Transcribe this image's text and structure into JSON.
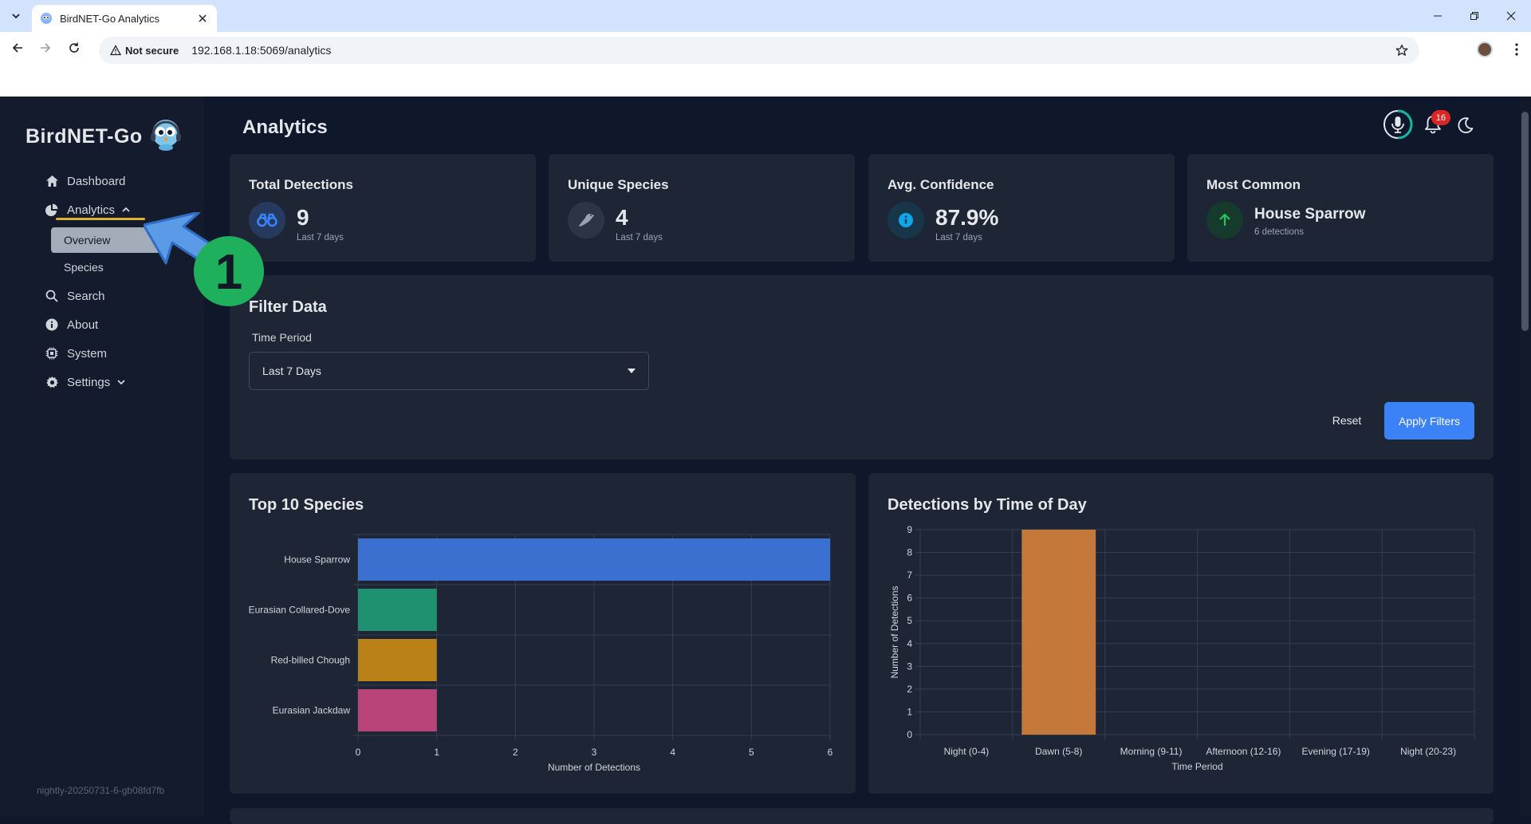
{
  "browser": {
    "tab_title": "BirdNET-Go Analytics",
    "security_label": "Not secure",
    "url": "192.168.1.18:5069/analytics"
  },
  "sidebar": {
    "brand": "BirdNET-Go",
    "items": [
      {
        "label": "Dashboard",
        "icon": "home-icon"
      },
      {
        "label": "Analytics",
        "icon": "pie-chart-icon"
      },
      {
        "label": "Search",
        "icon": "search-icon"
      },
      {
        "label": "About",
        "icon": "info-icon"
      },
      {
        "label": "System",
        "icon": "cpu-icon"
      },
      {
        "label": "Settings",
        "icon": "gear-icon"
      }
    ],
    "sub_items": [
      "Overview",
      "Species"
    ],
    "version": "nightly-20250731-6-gb08fd7fb"
  },
  "header": {
    "title": "Analytics",
    "notification_count": "16"
  },
  "stats": [
    {
      "label": "Total Detections",
      "value": "9",
      "sub": "Last 7 days",
      "icon": "binoculars-icon",
      "color": "#3b82f6"
    },
    {
      "label": "Unique Species",
      "value": "4",
      "sub": "Last 7 days",
      "icon": "bird-icon",
      "color": "#9ca3af"
    },
    {
      "label": "Avg. Confidence",
      "value": "87.9%",
      "sub": "Last 7 days",
      "icon": "info-icon",
      "color": "#0ea5e9"
    },
    {
      "label": "Most Common",
      "value": "House Sparrow",
      "sub": "6 detections",
      "icon": "arrow-up-icon",
      "color": "#22c55e"
    }
  ],
  "filter": {
    "title": "Filter Data",
    "time_label": "Time Period",
    "time_value": "Last 7 Days",
    "reset": "Reset",
    "apply": "Apply Filters"
  },
  "annotation": {
    "number": "1"
  },
  "chart_data": [
    {
      "type": "bar",
      "orientation": "horizontal",
      "title": "Top 10 Species",
      "xlabel": "Number of Detections",
      "ylabel": "",
      "categories": [
        "House Sparrow",
        "Eurasian Collared-Dove",
        "Red-billed Chough",
        "Eurasian Jackdaw"
      ],
      "values": [
        6,
        1,
        1,
        1
      ],
      "colors": [
        "#3b6fd0",
        "#1f9170",
        "#bb8119",
        "#b84479"
      ],
      "xlim": [
        0,
        6
      ],
      "ticks": [
        "0",
        "1",
        "2",
        "3",
        "4",
        "5",
        "6"
      ],
      "grid": true
    },
    {
      "type": "bar",
      "title": "Detections by Time of Day",
      "xlabel": "Time Period",
      "ylabel": "Number of Detections",
      "categories": [
        "Night (0-4)",
        "Dawn (5-8)",
        "Morning (9-11)",
        "Afternoon (12-16)",
        "Evening (17-19)",
        "Night (20-23)"
      ],
      "values": [
        0,
        9,
        0,
        0,
        0,
        0
      ],
      "color": "#c47839",
      "ylim": [
        0,
        9
      ],
      "ticks": [
        "0",
        "1",
        "2",
        "3",
        "4",
        "5",
        "6",
        "7",
        "8",
        "9"
      ],
      "grid": true
    }
  ]
}
